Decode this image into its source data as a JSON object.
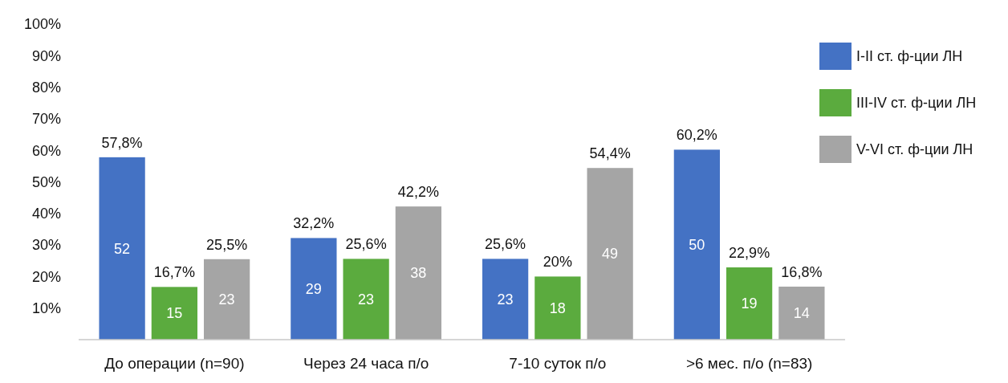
{
  "chart_data": {
    "type": "bar",
    "categories": [
      "До операции (n=90)",
      "Через 24 часа п/о",
      "7-10 суток п/о",
      ">6 мес. п/о (n=83)"
    ],
    "series": [
      {
        "name": "I-II ст.  ф-ции  ЛН",
        "color": "#4472c4",
        "values": [
          57.8,
          32.2,
          25.6,
          60.2
        ],
        "value_labels": [
          "57,8%",
          "32,2%",
          "25,6%",
          "60,2%"
        ]
      },
      {
        "name": "III-IV ст.  ф-ции  ЛН",
        "color": "#5bab3e",
        "values": [
          16.7,
          25.6,
          20,
          22.9
        ],
        "value_labels": [
          "16,7%",
          "25,6%",
          "20%",
          "22,9%"
        ]
      },
      {
        "name": "V-VI ст.  ф-ции  ЛН",
        "color": "#a5a5a5",
        "values": [
          25.5,
          42.2,
          54.4,
          16.8
        ],
        "value_labels": [
          "25,5%",
          "42,2%",
          "54,4%",
          "16,8%"
        ]
      }
    ],
    "ylim": [
      0,
      100
    ],
    "yticks": [
      {
        "value": 10,
        "label": "10%"
      },
      {
        "value": 20,
        "label": "20%"
      },
      {
        "value": 30,
        "label": "30%"
      },
      {
        "value": 40,
        "label": "40%"
      },
      {
        "value": 50,
        "label": "50%"
      },
      {
        "value": 60,
        "label": "60%"
      },
      {
        "value": 70,
        "label": "70%"
      },
      {
        "value": 80,
        "label": "80%"
      },
      {
        "value": 90,
        "label": "90%"
      },
      {
        "value": 100,
        "label": "100%"
      }
    ],
    "legend": "right",
    "annotations": [
      "52",
      "15",
      "23",
      "29",
      "23",
      "38",
      "23",
      "18",
      "49",
      "50",
      "19",
      "14"
    ]
  }
}
